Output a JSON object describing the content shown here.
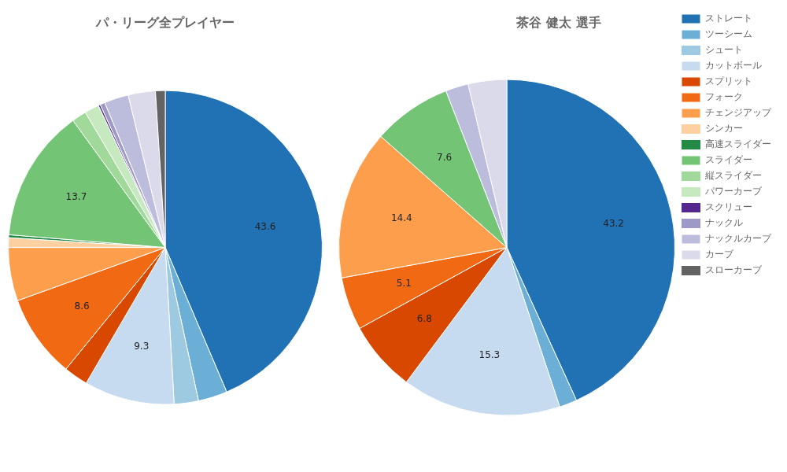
{
  "chart_data": [
    {
      "type": "pie",
      "title": "パ・リーグ全プレイヤー",
      "categories": [
        "ストレート",
        "ツーシーム",
        "シュート",
        "カットボール",
        "スプリット",
        "フォーク",
        "チェンジアップ",
        "シンカー",
        "高速スライダー",
        "スライダー",
        "縦スライダー",
        "パワーカーブ",
        "スクリュー",
        "ナックル",
        "ナックルカーブ",
        "カーブ",
        "スローカーブ"
      ],
      "values": [
        43.6,
        3.0,
        2.5,
        9.3,
        2.5,
        8.6,
        5.5,
        1.0,
        0.3,
        13.7,
        1.5,
        1.5,
        0.2,
        0.5,
        2.5,
        2.8,
        1.0
      ],
      "value_labels": [
        "43.6",
        null,
        null,
        "9.3",
        null,
        "8.6",
        null,
        null,
        null,
        "13.7",
        null,
        null,
        null,
        null,
        null,
        null,
        null
      ],
      "colors": [
        "#2171b5",
        "#6baed6",
        "#9ecae1",
        "#c6dbef",
        "#d94801",
        "#f16913",
        "#fd9e4c",
        "#fdd0a2",
        "#238b45",
        "#74c476",
        "#a1d99b",
        "#c7e9c0",
        "#54278f",
        "#9e9ac8",
        "#bcbddc",
        "#dadaeb",
        "#636363"
      ],
      "data_labels": true
    },
    {
      "type": "pie",
      "title": "茶谷 健太 選手",
      "categories": [
        "ストレート",
        "ツーシーム",
        "シュート",
        "カットボール",
        "スプリット",
        "フォーク",
        "チェンジアップ",
        "シンカー",
        "高速スライダー",
        "スライダー",
        "縦スライダー",
        "パワーカーブ",
        "スクリュー",
        "ナックル",
        "ナックルカーブ",
        "カーブ",
        "スローカーブ"
      ],
      "values": [
        43.2,
        1.7,
        0.0,
        15.3,
        6.8,
        5.1,
        14.4,
        0.0,
        0.0,
        7.6,
        0.0,
        0.0,
        0.0,
        0.0,
        2.2,
        3.7,
        0.0
      ],
      "value_labels": [
        "43.2",
        null,
        null,
        "15.3",
        "6.8",
        "5.1",
        "14.4",
        null,
        null,
        "7.6",
        null,
        null,
        null,
        null,
        null,
        null,
        null
      ],
      "colors": [
        "#2171b5",
        "#6baed6",
        "#9ecae1",
        "#c6dbef",
        "#d94801",
        "#f16913",
        "#fd9e4c",
        "#fdd0a2",
        "#238b45",
        "#74c476",
        "#a1d99b",
        "#c7e9c0",
        "#54278f",
        "#9e9ac8",
        "#bcbddc",
        "#dadaeb",
        "#636363"
      ],
      "data_labels": true,
      "legend": "right"
    }
  ]
}
